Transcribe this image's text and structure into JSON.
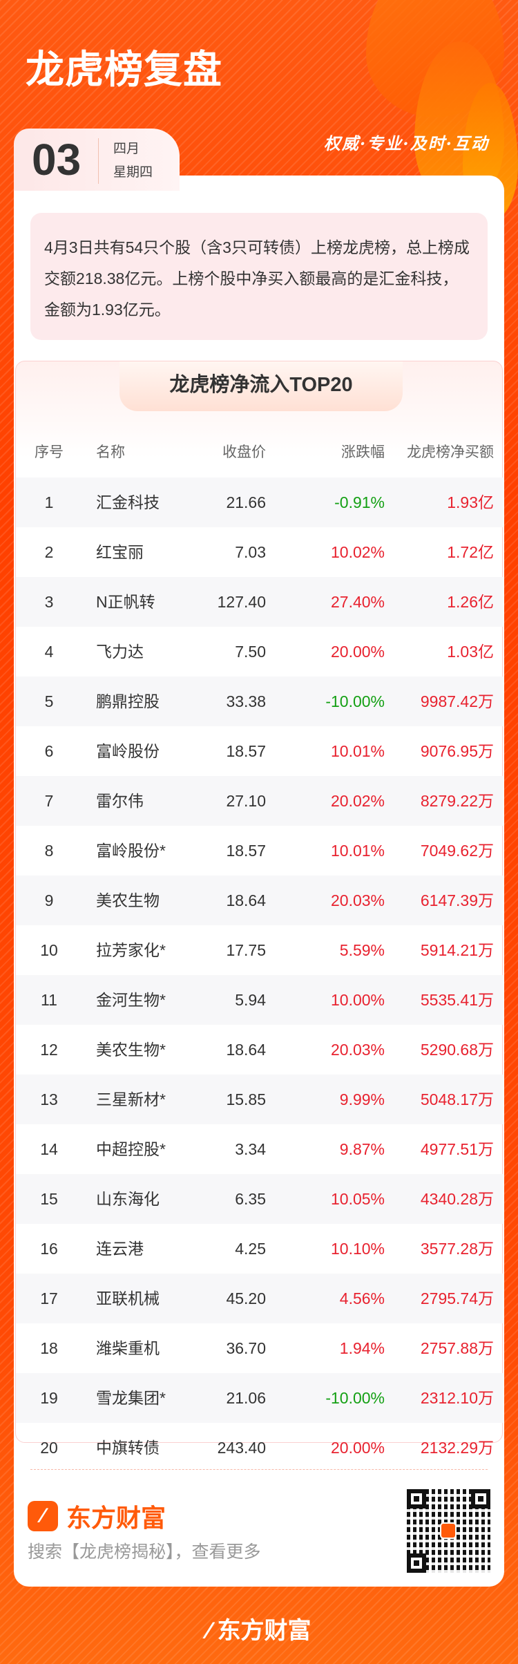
{
  "header": {
    "title": "龙虎榜复盘",
    "slogan": "权威·专业·及时·互动",
    "day": "03",
    "month": "四月",
    "weekday": "星期四"
  },
  "summary": "4月3日共有54只个股（含3只可转债）上榜龙虎榜，总上榜成交额218.38亿元。上榜个股中净买入额最高的是汇金科技，金额为1.93亿元。",
  "table": {
    "title": "龙虎榜净流入TOP20",
    "columns": [
      "序号",
      "名称",
      "收盘价",
      "涨跌幅",
      "龙虎榜净买额"
    ],
    "rows": [
      [
        "1",
        "汇金科技",
        "21.66",
        "-0.91%",
        "1.93亿"
      ],
      [
        "2",
        "红宝丽",
        "7.03",
        "10.02%",
        "1.72亿"
      ],
      [
        "3",
        "N正帆转",
        "127.40",
        "27.40%",
        "1.26亿"
      ],
      [
        "4",
        "飞力达",
        "7.50",
        "20.00%",
        "1.03亿"
      ],
      [
        "5",
        "鹏鼎控股",
        "33.38",
        "-10.00%",
        "9987.42万"
      ],
      [
        "6",
        "富岭股份",
        "18.57",
        "10.01%",
        "9076.95万"
      ],
      [
        "7",
        "雷尔伟",
        "27.10",
        "20.02%",
        "8279.22万"
      ],
      [
        "8",
        "富岭股份*",
        "18.57",
        "10.01%",
        "7049.62万"
      ],
      [
        "9",
        "美农生物",
        "18.64",
        "20.03%",
        "6147.39万"
      ],
      [
        "10",
        "拉芳家化*",
        "17.75",
        "5.59%",
        "5914.21万"
      ],
      [
        "11",
        "金河生物*",
        "5.94",
        "10.00%",
        "5535.41万"
      ],
      [
        "12",
        "美农生物*",
        "18.64",
        "20.03%",
        "5290.68万"
      ],
      [
        "13",
        "三星新材*",
        "15.85",
        "9.99%",
        "5048.17万"
      ],
      [
        "14",
        "中超控股*",
        "3.34",
        "9.87%",
        "4977.51万"
      ],
      [
        "15",
        "山东海化",
        "6.35",
        "10.05%",
        "4340.28万"
      ],
      [
        "16",
        "连云港",
        "4.25",
        "10.10%",
        "3577.28万"
      ],
      [
        "17",
        "亚联机械",
        "45.20",
        "4.56%",
        "2795.74万"
      ],
      [
        "18",
        "潍柴重机",
        "36.70",
        "1.94%",
        "2757.88万"
      ],
      [
        "19",
        "雪龙集团*",
        "21.06",
        "-10.00%",
        "2312.10万"
      ],
      [
        "20",
        "中旗转债",
        "243.40",
        "20.00%",
        "2132.29万"
      ]
    ]
  },
  "footer": {
    "brand": "东方财富",
    "search_hint": "搜索【龙虎榜揭秘】，查看更多",
    "bottom_brand": "东方财富"
  },
  "colors": {
    "up": "#e8222f",
    "down": "#14a014",
    "brand": "#ff5a0a"
  },
  "icons": {
    "logo": "eastmoney-logo-icon",
    "qr": "qr-code"
  }
}
